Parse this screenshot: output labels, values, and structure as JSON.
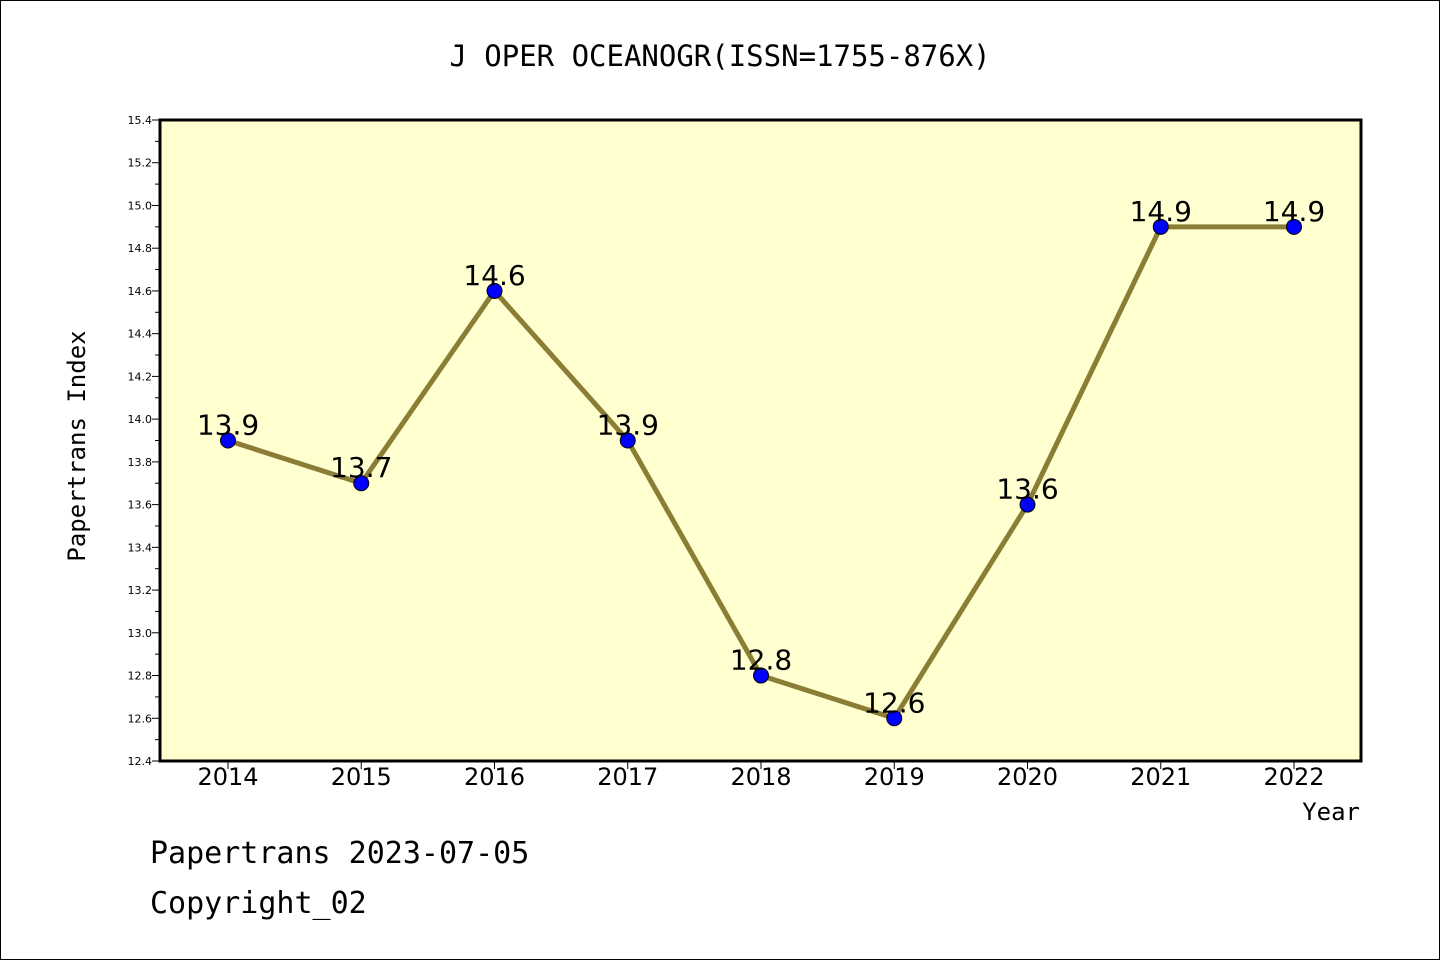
{
  "chart_data": {
    "type": "line",
    "title": "J OPER OCEANOGR(ISSN=1755-876X)",
    "xlabel": "Year",
    "ylabel": "Papertrans Index",
    "categories": [
      "2014",
      "2015",
      "2016",
      "2017",
      "2018",
      "2019",
      "2020",
      "2021",
      "2022"
    ],
    "values": [
      13.9,
      13.7,
      14.6,
      13.9,
      12.8,
      12.6,
      13.6,
      14.9,
      14.9
    ],
    "data_labels": [
      "13.9",
      "13.7",
      "14.6",
      "13.9",
      "12.8",
      "12.6",
      "13.6",
      "14.9",
      "14.9"
    ],
    "ylim": [
      12.4,
      15.4
    ],
    "yticks": [
      "12.4",
      "12.6",
      "12.8",
      "13.0",
      "13.2",
      "13.4",
      "13.6",
      "13.8",
      "14.0",
      "14.2",
      "14.4",
      "14.6",
      "14.8",
      "15.0",
      "15.2",
      "15.4"
    ],
    "grid": false,
    "legend": "none",
    "colors": {
      "plot_background": "#ffffd0",
      "line": "#8b7d35",
      "marker": "#0000ff"
    }
  },
  "footer": {
    "source": "Papertrans 2023-07-05",
    "copyright": "Copyright_02"
  }
}
